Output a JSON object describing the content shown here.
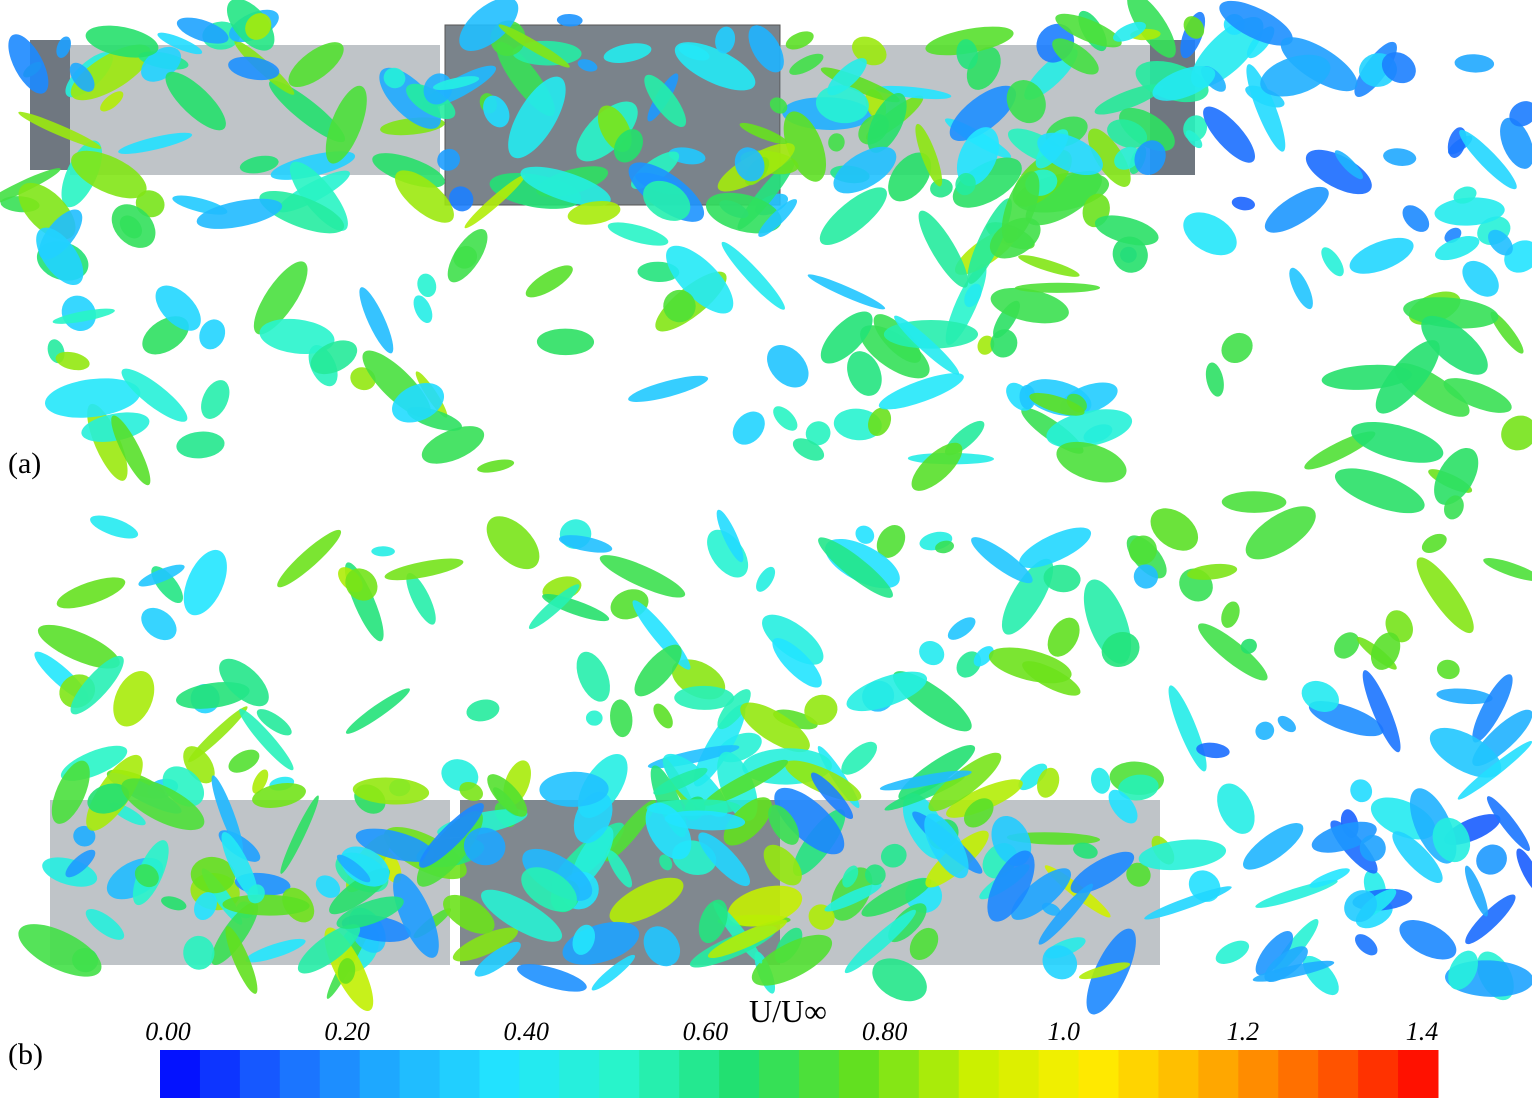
{
  "panels": [
    {
      "label": "(a)"
    },
    {
      "label": "(b)"
    }
  ],
  "colorbar": {
    "title": "U/U∞",
    "min": 0,
    "max": 1.4,
    "ticks": [
      {
        "value": 0,
        "label": "0.00"
      },
      {
        "value": 0.2,
        "label": "0.20"
      },
      {
        "value": 0.4,
        "label": "0.40"
      },
      {
        "value": 0.6,
        "label": "0.60"
      },
      {
        "value": 0.8,
        "label": "0.80"
      },
      {
        "value": 1,
        "label": "1.0"
      },
      1.2,
      1.4
    ],
    "colors": [
      "#0000ff",
      "#1a66ff",
      "#1fb0ff",
      "#22e6ff",
      "#28f5c8",
      "#22e070",
      "#60e020",
      "#c8f000",
      "#ffee00",
      "#ffb000",
      "#ff6000",
      "#ff0000"
    ]
  }
}
